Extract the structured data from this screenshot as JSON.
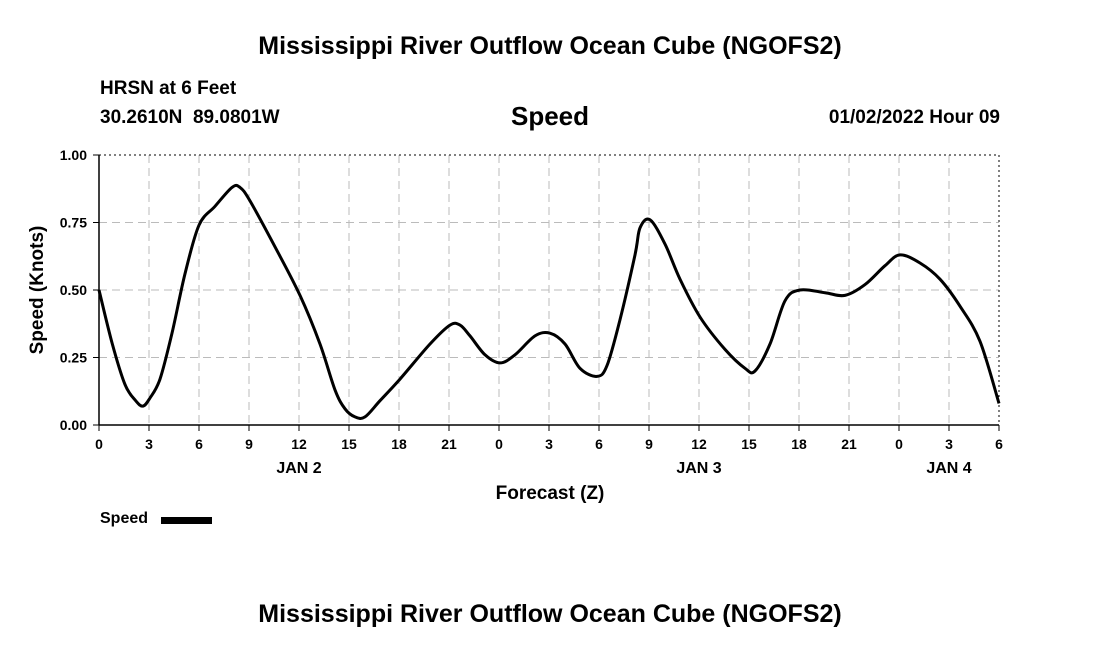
{
  "header": {
    "title": "Mississippi River Outflow Ocean Cube (NGOFS2)",
    "station": "HRSN at 6 Feet",
    "coords": "30.2610N  89.0801W",
    "variable": "Speed",
    "datetime": "01/02/2022 Hour 09",
    "footer_title": "Mississippi River Outflow Ocean Cube (NGOFS2)"
  },
  "chart_data": {
    "type": "line",
    "title": "Speed",
    "xlabel": "Forecast (Z)",
    "ylabel": "Speed (Knots)",
    "xlim": [
      0,
      54
    ],
    "ylim": [
      0,
      1
    ],
    "grid": true,
    "yticks": [
      "0.00",
      "0.25",
      "0.50",
      "0.75",
      "1.00"
    ],
    "xtick_labels": [
      "0",
      "3",
      "6",
      "9",
      "12",
      "15",
      "18",
      "21",
      "0",
      "3",
      "6",
      "9",
      "12",
      "15",
      "18",
      "21",
      "0",
      "3",
      "6"
    ],
    "day_labels": [
      {
        "label": "JAN 2",
        "hour": 12
      },
      {
        "label": "JAN 3",
        "hour": 36
      },
      {
        "label": "JAN 4",
        "hour": 51
      }
    ],
    "legend": {
      "label": "Speed",
      "placement": "bottom-left"
    },
    "series": [
      {
        "name": "Speed",
        "color": "#000000",
        "x": [
          0,
          0.8,
          1.56,
          2.2,
          2.64,
          3.06,
          3.66,
          4.38,
          5.16,
          6,
          6.96,
          7.98,
          8.46,
          9.06,
          10.56,
          12.06,
          13.26,
          14.16,
          14.76,
          15.36,
          15.96,
          16.86,
          18.06,
          19.86,
          21.06,
          21.66,
          22.26,
          23.16,
          24.06,
          24.96,
          26.16,
          27.06,
          27.96,
          28.86,
          29.88,
          30.48,
          31.26,
          32.16,
          32.46,
          33.06,
          33.96,
          34.86,
          36.06,
          37.56,
          38.76,
          39.36,
          40.26,
          41.16,
          42.06,
          43.56,
          44.76,
          45.96,
          47.16,
          48.06,
          49.26,
          50.46,
          51.66,
          52.86,
          54
        ],
        "values": [
          0.5,
          0.3,
          0.15,
          0.09,
          0.07,
          0.1,
          0.17,
          0.34,
          0.56,
          0.74,
          0.81,
          0.88,
          0.88,
          0.83,
          0.66,
          0.48,
          0.3,
          0.13,
          0.06,
          0.03,
          0.03,
          0.09,
          0.17,
          0.3,
          0.37,
          0.37,
          0.33,
          0.26,
          0.23,
          0.26,
          0.33,
          0.34,
          0.3,
          0.21,
          0.18,
          0.22,
          0.39,
          0.63,
          0.73,
          0.76,
          0.67,
          0.54,
          0.4,
          0.28,
          0.21,
          0.2,
          0.3,
          0.46,
          0.5,
          0.49,
          0.48,
          0.52,
          0.59,
          0.63,
          0.6,
          0.54,
          0.44,
          0.31,
          0.08
        ]
      }
    ]
  }
}
